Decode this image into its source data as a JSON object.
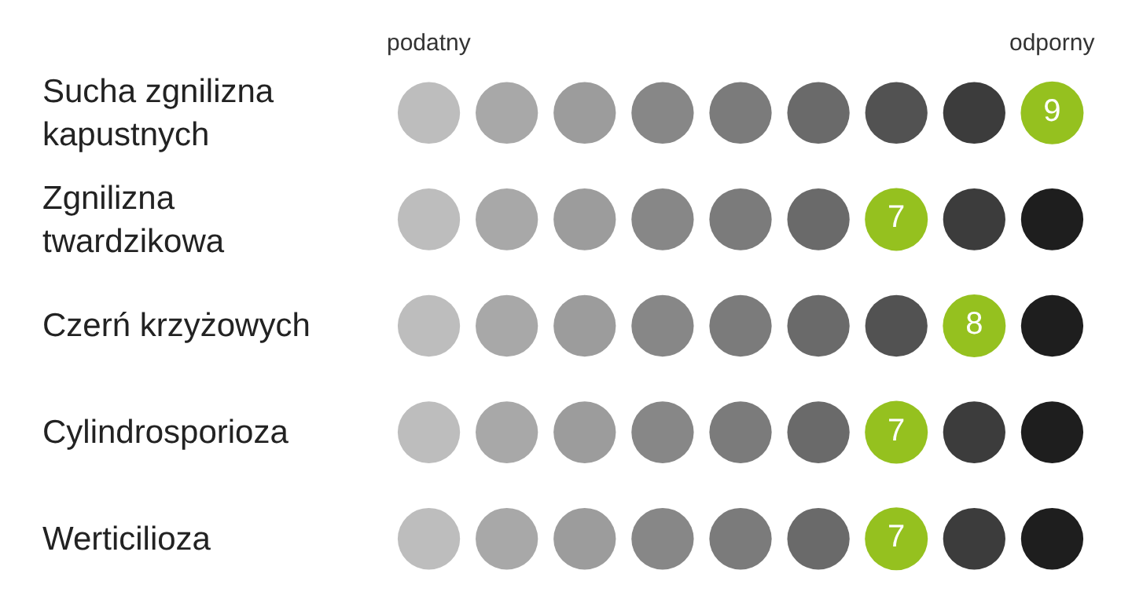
{
  "chart_data": {
    "type": "other",
    "categories": [
      "Sucha zgnilizna kapustnych",
      "Zgnilizna twardzikowa",
      "Czerń krzyżowych",
      "Cylindrosporioza",
      "Werticilioza"
    ],
    "values": [
      9,
      7,
      8,
      7,
      7
    ],
    "color": "#95c11f",
    "data_labels": true,
    "annotations": [
      "podatny",
      "odporny"
    ]
  }
}
